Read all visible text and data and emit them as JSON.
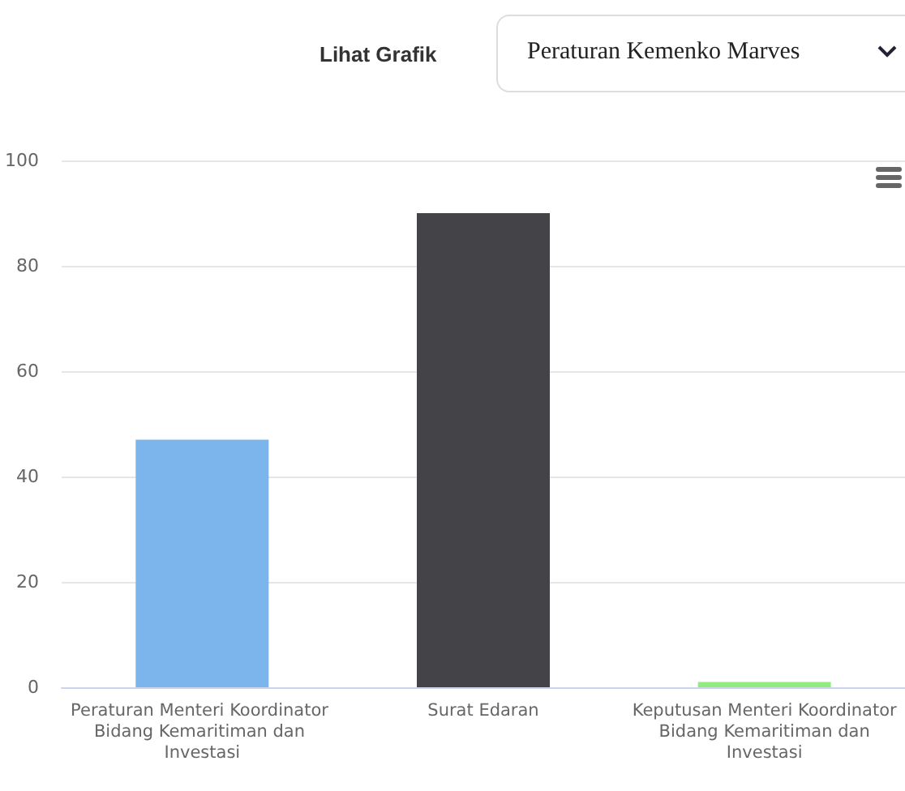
{
  "chart_data": {
    "type": "bar",
    "annotations": [
      "Lihat Grafik",
      "Peraturan Kemenko Marves"
    ],
    "categories": [
      "Peraturan Menteri Koordinator Bidang Kemaritiman dan Investasi",
      "Surat Edaran",
      "Keputusan Menteri Koordinator Bidang Kemaritiman dan Investasi"
    ],
    "values": [
      47,
      90,
      1
    ],
    "colors": [
      "#7cb5ec",
      "#434348",
      "#90ed7d"
    ],
    "ylim": [
      0,
      100
    ],
    "yticks": [
      0,
      20,
      40,
      60,
      80,
      100
    ],
    "grid": "y"
  }
}
